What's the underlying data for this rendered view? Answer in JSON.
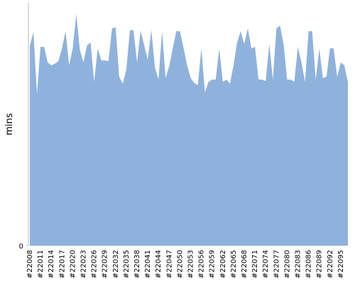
{
  "chart_data": {
    "type": "area",
    "y_label": "mins",
    "color": "#8fb2dc",
    "categories": [
      "#22008",
      null,
      null,
      "#22011",
      null,
      null,
      "#22014",
      null,
      null,
      "#22017",
      null,
      null,
      "#22020",
      null,
      null,
      "#22023",
      null,
      null,
      "#22026",
      null,
      null,
      "#22029",
      null,
      null,
      "#22032",
      null,
      null,
      "#22035",
      null,
      null,
      "#22038",
      null,
      null,
      "#22041",
      null,
      null,
      "#22044",
      null,
      null,
      "#22047",
      null,
      null,
      "#22050",
      null,
      null,
      "#22053",
      null,
      null,
      "#22056",
      null,
      null,
      "#22059",
      null,
      null,
      "#22062",
      null,
      null,
      "#22065",
      null,
      null,
      "#22068",
      null,
      null,
      "#22071",
      null,
      null,
      "#22074",
      null,
      null,
      "#22077",
      null,
      null,
      "#22080",
      null,
      null,
      "#22083",
      null,
      null,
      "#22086",
      null,
      null,
      "#22089",
      null,
      null,
      "#22092",
      null,
      null,
      "#22095",
      null,
      null
    ],
    "values": [
      82.4,
      88.3,
      62.8,
      82.1,
      82.1,
      75.7,
      74.5,
      75.1,
      76.2,
      81.5,
      88.6,
      74.5,
      81.5,
      95.6,
      80.9,
      75.7,
      82.7,
      83.9,
      67.7,
      81.5,
      76.5,
      76.5,
      76.2,
      89.7,
      90.3,
      69.8,
      66.9,
      72.7,
      88.9,
      89.1,
      75.7,
      88.9,
      82.7,
      76.8,
      89.1,
      73.6,
      68.6,
      88.6,
      69.2,
      74.2,
      81.5,
      88.6,
      88.6,
      81.8,
      74.5,
      69.2,
      67.2,
      66.3,
      81.5,
      63.3,
      67.7,
      68.6,
      68.6,
      81.5,
      67.7,
      68.6,
      66.9,
      74.5,
      83.9,
      88.6,
      83.3,
      89.7,
      81.5,
      82.1,
      68.6,
      68.6,
      68.0,
      83.3,
      68.6,
      89.7,
      90.9,
      83.3,
      68.6,
      68.6,
      67.7,
      82.1,
      75.7,
      67.7,
      88.6,
      88.6,
      68.6,
      81.5,
      69.2,
      69.8,
      81.5,
      81.5,
      69.8,
      75.7,
      74.5,
      67.4
    ],
    "ylim": [
      0,
      100
    ],
    "yticks": [
      0
    ]
  }
}
